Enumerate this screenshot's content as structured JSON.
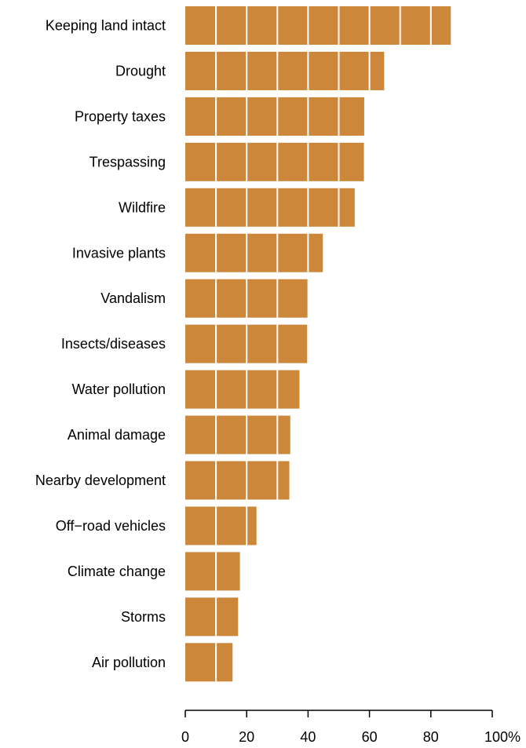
{
  "chart_data": {
    "type": "bar",
    "orientation": "horizontal",
    "categories": [
      "Keeping land intact",
      "Drought",
      "Property taxes",
      "Trespassing",
      "Wildfire",
      "Invasive plants",
      "Vandalism",
      "Insects/diseases",
      "Water pollution",
      "Animal damage",
      "Nearby development",
      "Off−road vehicles",
      "Climate change",
      "Storms",
      "Air pollution"
    ],
    "values": [
      86.5,
      64.8,
      58.3,
      58.2,
      55.2,
      44.8,
      39.8,
      39.7,
      37.2,
      34.2,
      33.9,
      23.2,
      17.8,
      17.2,
      15.4
    ],
    "xlim": [
      0,
      100
    ],
    "xticks": [
      0,
      20,
      40,
      60,
      80,
      100
    ],
    "xtick_labels": [
      "0",
      "20",
      "40",
      "60",
      "80",
      "100%"
    ],
    "segment_step": 10,
    "grid": false,
    "title": "",
    "xlabel": "",
    "ylabel": "",
    "colors": {
      "bar": "#CD873A",
      "segment_line": "#ffffff",
      "axis": "#000000"
    }
  }
}
